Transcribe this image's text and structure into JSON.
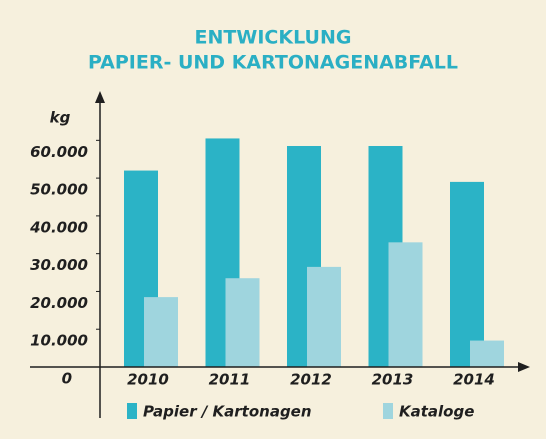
{
  "chart_data": {
    "type": "bar",
    "title": [
      "ENTWICKLUNG",
      "PAPIER- UND KARTONAGENABFALL"
    ],
    "y_label": "kg",
    "categories": [
      "2010",
      "2011",
      "2012",
      "2013",
      "2014"
    ],
    "series": [
      {
        "name": "Papier / Kartonagen",
        "color": "#2bb3c6",
        "values": [
          52000,
          60500,
          58500,
          58500,
          49000
        ]
      },
      {
        "name": "Kataloge",
        "color": "#9fd5de",
        "values": [
          18500,
          23500,
          26500,
          33000,
          7000
        ]
      }
    ],
    "ylim": [
      0,
      72000
    ],
    "yticks": [
      0,
      {
        "value": 10000,
        "label": "10.000"
      },
      {
        "value": 20000,
        "label": "20.000"
      },
      {
        "value": 30000,
        "label": "30.000"
      },
      {
        "value": 40000,
        "label": "40.000"
      },
      {
        "value": 50000,
        "label": "50.000"
      },
      {
        "value": 60000,
        "label": "60.000"
      }
    ],
    "grid": false,
    "legend": "bottom"
  }
}
